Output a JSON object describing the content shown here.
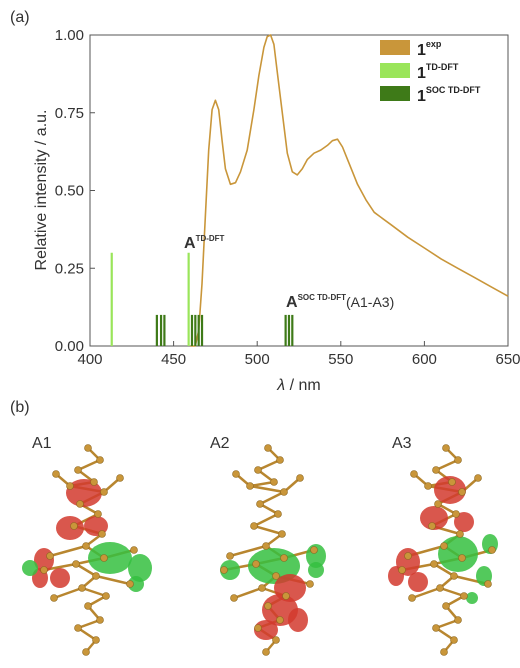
{
  "panels": {
    "a": "(a)",
    "b": "(b)"
  },
  "chart_data": {
    "type": "line",
    "xlabel_italic": "λ",
    "xlabel_rest": " / nm",
    "ylabel": "Relative intensity / a.u.",
    "xlim": [
      400,
      650
    ],
    "ylim": [
      0,
      1.0
    ],
    "xticks": [
      "400",
      "450",
      "500",
      "550",
      "600",
      "650"
    ],
    "yticks": [
      "0.00",
      "0.25",
      "0.50",
      "0.75",
      "1.00"
    ],
    "grid": false,
    "legend_position": "top-right",
    "legend": [
      {
        "main": "1",
        "sup": "exp",
        "color": "#C9963A"
      },
      {
        "main": "1",
        "sup": "TD-DFT",
        "color": "#9AE55A"
      },
      {
        "main": "1",
        "sup": "SOC TD-DFT",
        "color": "#3E7A18"
      }
    ],
    "series": [
      {
        "kind": "curve",
        "color": "#C9963A",
        "x": [
          460,
          463,
          465,
          467,
          469,
          471,
          473,
          475,
          477,
          479,
          481,
          484,
          487,
          490,
          494,
          498,
          501,
          504,
          506,
          508,
          510,
          512,
          515,
          518,
          521,
          524,
          527,
          530,
          534,
          538,
          542,
          545,
          548,
          551,
          554,
          557,
          560,
          565,
          570,
          580,
          590,
          600,
          610,
          620,
          630,
          640,
          650
        ],
        "y": [
          0.0,
          0.0,
          0.05,
          0.2,
          0.42,
          0.63,
          0.76,
          0.79,
          0.76,
          0.66,
          0.57,
          0.52,
          0.525,
          0.56,
          0.63,
          0.76,
          0.87,
          0.96,
          0.995,
          1.0,
          0.97,
          0.88,
          0.75,
          0.62,
          0.56,
          0.55,
          0.57,
          0.6,
          0.62,
          0.63,
          0.645,
          0.66,
          0.665,
          0.64,
          0.6,
          0.56,
          0.52,
          0.47,
          0.43,
          0.39,
          0.35,
          0.315,
          0.28,
          0.25,
          0.22,
          0.19,
          0.16
        ]
      },
      {
        "kind": "sticks",
        "color": "#9AE55A",
        "x": [
          413,
          459
        ],
        "y": [
          0.3,
          0.3
        ]
      },
      {
        "kind": "sticks",
        "color": "#3E7A18",
        "x": [
          440,
          442.5,
          444.5,
          461,
          463,
          465,
          467,
          517,
          519,
          521
        ],
        "y": [
          0.1,
          0.1,
          0.1,
          0.1,
          0.1,
          0.1,
          0.1,
          0.1,
          0.1,
          0.1
        ]
      }
    ],
    "annotations": [
      {
        "main": "A",
        "sup": "TD-DFT",
        "tail": ""
      },
      {
        "main": "A",
        "sup": "SOC TD-DFT",
        "tail": "(A1-A3)"
      }
    ]
  },
  "molecules": {
    "labels": [
      "A1",
      "A2",
      "A3"
    ],
    "colors": {
      "bond": "#B8862F",
      "atom": "#C9963A",
      "negative_lobe": "#D23A2E",
      "positive_lobe": "#35C040"
    }
  }
}
